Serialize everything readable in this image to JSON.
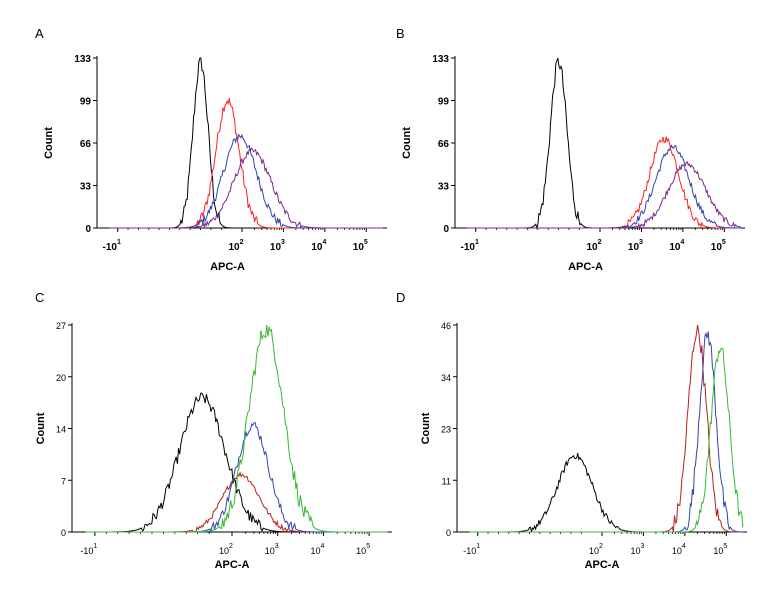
{
  "chart_data": [
    {
      "panel": "A",
      "type": "line",
      "xlabel": "APC-A",
      "ylabel": "Count",
      "y_ticks": [
        "133",
        "99",
        "66",
        "33",
        "0"
      ],
      "x_ticks": [
        {
          "base": "-10",
          "exp": "1",
          "value": -1
        },
        {
          "base": "10",
          "exp": "2",
          "value": 2
        },
        {
          "base": "10",
          "exp": "3",
          "value": 3
        },
        {
          "base": "10",
          "exp": "4",
          "value": 4
        },
        {
          "base": "10",
          "exp": "5",
          "value": 5
        }
      ],
      "xlim": [
        -1.5,
        5.5
      ],
      "ylim": [
        0,
        133
      ],
      "series": [
        {
          "name": "black",
          "color": "#000000",
          "center": 1.0,
          "width": 0.18,
          "peak": 130
        },
        {
          "name": "red",
          "color": "#ff2020",
          "center": 1.65,
          "width": 0.28,
          "peak": 100
        },
        {
          "name": "blue",
          "color": "#3344aa",
          "center": 1.95,
          "width": 0.4,
          "peak": 72
        },
        {
          "name": "purple",
          "color": "#7a2a8c",
          "center": 2.25,
          "width": 0.45,
          "peak": 60
        }
      ]
    },
    {
      "panel": "B",
      "type": "line",
      "xlabel": "APC-A",
      "ylabel": "Count",
      "y_ticks": [
        "133",
        "99",
        "66",
        "33",
        "0"
      ],
      "x_ticks": [
        {
          "base": "-10",
          "exp": "1",
          "value": -1
        },
        {
          "base": "10",
          "exp": "2",
          "value": 2
        },
        {
          "base": "10",
          "exp": "3",
          "value": 3
        },
        {
          "base": "10",
          "exp": "4",
          "value": 4
        },
        {
          "base": "10",
          "exp": "5",
          "value": 5
        }
      ],
      "xlim": [
        -1.5,
        5.5
      ],
      "ylim": [
        0,
        133
      ],
      "series": [
        {
          "name": "black",
          "color": "#000000",
          "center": 1.0,
          "width": 0.2,
          "peak": 130
        },
        {
          "name": "red",
          "color": "#ff2020",
          "center": 3.55,
          "width": 0.35,
          "peak": 70
        },
        {
          "name": "blue",
          "color": "#3344aa",
          "center": 3.75,
          "width": 0.4,
          "peak": 63
        },
        {
          "name": "purple",
          "color": "#7a2a8c",
          "center": 4.1,
          "width": 0.45,
          "peak": 50
        }
      ]
    },
    {
      "panel": "C",
      "type": "line",
      "xlabel": "APC-A",
      "ylabel": "Count",
      "y_ticks": [
        "27",
        "20",
        "14",
        "7",
        "0"
      ],
      "x_ticks": [
        {
          "base": "-10",
          "exp": "1",
          "value": -1
        },
        {
          "base": "10",
          "exp": "2",
          "value": 2
        },
        {
          "base": "10",
          "exp": "3",
          "value": 3
        },
        {
          "base": "10",
          "exp": "4",
          "value": 4
        },
        {
          "base": "10",
          "exp": "5",
          "value": 5
        }
      ],
      "xlim": [
        -1.5,
        5.5
      ],
      "ylim": [
        0,
        27
      ],
      "series": [
        {
          "name": "black",
          "color": "#000000",
          "center": 1.35,
          "width": 0.5,
          "peak": 17.5
        },
        {
          "name": "red",
          "color": "#b22222",
          "center": 2.2,
          "width": 0.4,
          "peak": 7.5
        },
        {
          "name": "blue",
          "color": "#3344aa",
          "center": 2.45,
          "width": 0.35,
          "peak": 14
        },
        {
          "name": "green",
          "color": "#33bb33",
          "center": 2.75,
          "width": 0.38,
          "peak": 26.5
        }
      ]
    },
    {
      "panel": "D",
      "type": "line",
      "xlabel": "APC-A",
      "ylabel": "Count",
      "y_ticks": [
        "46",
        "34",
        "23",
        "11",
        "0"
      ],
      "x_ticks": [
        {
          "base": "-10",
          "exp": "1",
          "value": -1
        },
        {
          "base": "10",
          "exp": "2",
          "value": 2
        },
        {
          "base": "10",
          "exp": "3",
          "value": 3
        },
        {
          "base": "10",
          "exp": "4",
          "value": 4
        },
        {
          "base": "10",
          "exp": "5",
          "value": 5
        }
      ],
      "xlim": [
        -1.5,
        5.5
      ],
      "ylim": [
        0,
        46
      ],
      "series": [
        {
          "name": "black",
          "color": "#000000",
          "center": 1.35,
          "width": 0.42,
          "peak": 17
        },
        {
          "name": "red",
          "color": "#b22222",
          "center": 4.3,
          "width": 0.22,
          "peak": 45
        },
        {
          "name": "blue",
          "color": "#3344aa",
          "center": 4.55,
          "width": 0.2,
          "peak": 44
        },
        {
          "name": "green",
          "color": "#33bb33",
          "center": 4.85,
          "width": 0.22,
          "peak": 41
        }
      ]
    }
  ]
}
